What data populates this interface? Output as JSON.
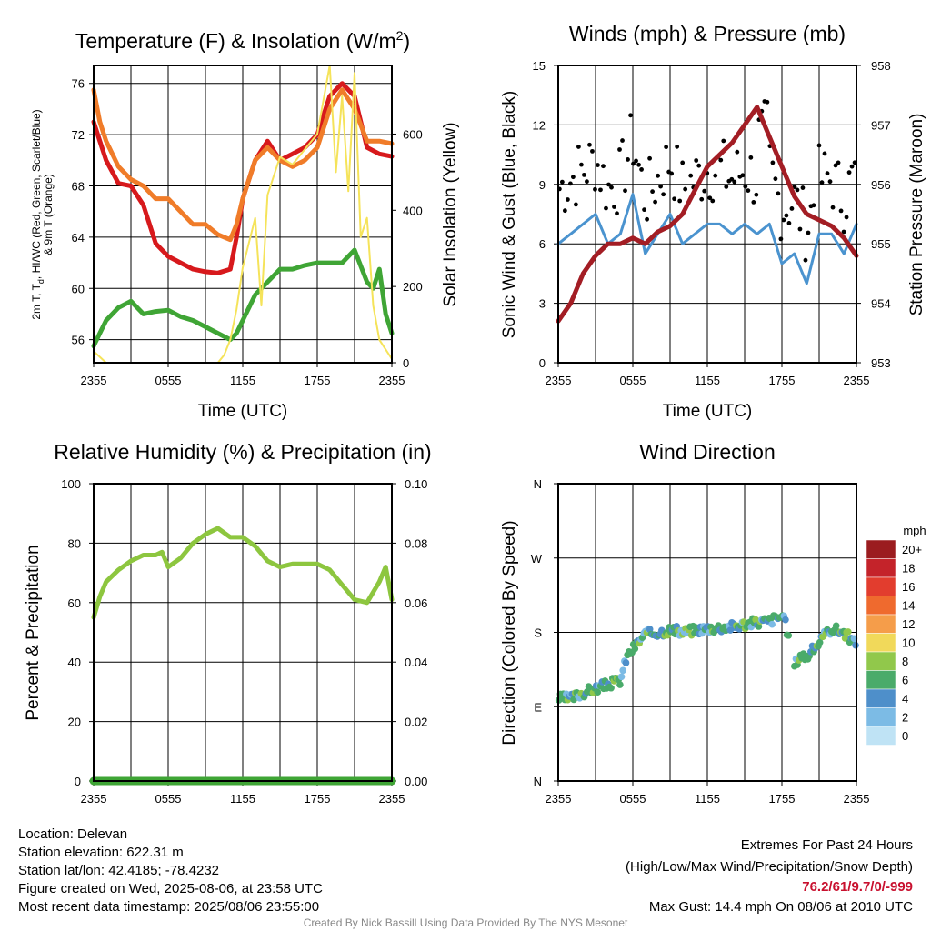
{
  "chart_data": [
    {
      "type": "line",
      "title": "Temperature (F) & Insolation (W/m",
      "title_sup": "2",
      "title_end": ")",
      "xlabel": "Time (UTC)",
      "ylabel_lines": [
        "2m T, T",
        "d",
        ", HI/WC (Red, Green, Scarlet/Blue)",
        "& 9m T (Orange)"
      ],
      "ylabel2": "Solar Insolation (Yellow)",
      "x_ticks": [
        "2355",
        "0555",
        "1155",
        "1755",
        "2355"
      ],
      "y_ticks": [
        56,
        60,
        64,
        68,
        72,
        76
      ],
      "ylim": [
        54.2,
        77.4
      ],
      "y2_ticks": [
        0,
        200,
        400,
        600
      ],
      "y2lim": [
        0,
        780
      ],
      "xlim": [
        0,
        24
      ],
      "series": [
        {
          "role": "temp_2m",
          "color": "#d7191c",
          "values": [
            [
              0,
              73
            ],
            [
              0.5,
              71.5
            ],
            [
              1,
              70
            ],
            [
              2,
              68.2
            ],
            [
              3,
              68
            ],
            [
              4,
              66.5
            ],
            [
              5,
              63.5
            ],
            [
              6,
              62.5
            ],
            [
              7,
              62
            ],
            [
              8,
              61.5
            ],
            [
              9,
              61.3
            ],
            [
              10,
              61.2
            ],
            [
              11,
              61.5
            ],
            [
              11.5,
              64
            ],
            [
              12,
              67
            ],
            [
              13,
              70
            ],
            [
              14,
              71.5
            ],
            [
              15,
              70
            ],
            [
              16,
              70.5
            ],
            [
              17,
              71
            ],
            [
              18,
              72
            ],
            [
              19,
              75
            ],
            [
              20,
              76
            ],
            [
              21,
              75
            ],
            [
              22,
              71
            ],
            [
              23,
              70.5
            ],
            [
              24,
              70.3
            ]
          ]
        },
        {
          "role": "temp_9m",
          "color": "#f07c29",
          "values": [
            [
              0,
              75.5
            ],
            [
              0.5,
              73
            ],
            [
              1,
              71.5
            ],
            [
              2,
              69.5
            ],
            [
              3,
              68.5
            ],
            [
              4,
              68
            ],
            [
              5,
              67
            ],
            [
              6,
              67
            ],
            [
              7,
              66
            ],
            [
              8,
              65
            ],
            [
              9,
              65
            ],
            [
              10,
              64.2
            ],
            [
              11,
              63.8
            ],
            [
              11.5,
              65
            ],
            [
              12,
              67
            ],
            [
              13,
              70
            ],
            [
              14,
              71
            ],
            [
              15,
              70
            ],
            [
              16,
              69.5
            ],
            [
              17,
              70
            ],
            [
              18,
              71
            ],
            [
              19,
              74
            ],
            [
              20,
              75.5
            ],
            [
              21,
              74
            ],
            [
              22,
              71.5
            ],
            [
              23,
              71.5
            ],
            [
              24,
              71.3
            ]
          ]
        },
        {
          "role": "dewpoint",
          "color": "#3fa535",
          "values": [
            [
              0,
              55.5
            ],
            [
              0.5,
              56.5
            ],
            [
              1,
              57.5
            ],
            [
              2,
              58.5
            ],
            [
              3,
              59
            ],
            [
              4,
              58
            ],
            [
              5,
              58.2
            ],
            [
              6,
              58.3
            ],
            [
              7,
              57.8
            ],
            [
              8,
              57.5
            ],
            [
              9,
              57
            ],
            [
              10,
              56.5
            ],
            [
              11,
              56
            ],
            [
              11.5,
              56.5
            ],
            [
              12,
              57.5
            ],
            [
              13,
              59.5
            ],
            [
              14,
              60.5
            ],
            [
              15,
              61.5
            ],
            [
              16,
              61.5
            ],
            [
              17,
              61.8
            ],
            [
              18,
              62
            ],
            [
              19,
              62
            ],
            [
              20,
              62
            ],
            [
              21,
              63
            ],
            [
              22,
              60.5
            ],
            [
              22.5,
              60
            ],
            [
              23,
              61.5
            ],
            [
              23.5,
              58
            ],
            [
              24,
              56.5
            ]
          ]
        },
        {
          "role": "insolation",
          "color": "#f5e35a",
          "axis": "y2",
          "values": [
            [
              0,
              30
            ],
            [
              1,
              0
            ],
            [
              2,
              0
            ],
            [
              3,
              0
            ],
            [
              4,
              0
            ],
            [
              5,
              0
            ],
            [
              6,
              0
            ],
            [
              7,
              0
            ],
            [
              8,
              0
            ],
            [
              9,
              0
            ],
            [
              10,
              0
            ],
            [
              10.5,
              20
            ],
            [
              11,
              60
            ],
            [
              11.5,
              140
            ],
            [
              12,
              250
            ],
            [
              13,
              380
            ],
            [
              13.5,
              150
            ],
            [
              14,
              440
            ],
            [
              15,
              540
            ],
            [
              16,
              520
            ],
            [
              17,
              560
            ],
            [
              18,
              600
            ],
            [
              19,
              780
            ],
            [
              19.5,
              500
            ],
            [
              20,
              700
            ],
            [
              20.5,
              450
            ],
            [
              21,
              760
            ],
            [
              21.5,
              330
            ],
            [
              22,
              380
            ],
            [
              22.5,
              150
            ],
            [
              23,
              60
            ],
            [
              24,
              10
            ]
          ]
        }
      ]
    },
    {
      "type": "line",
      "title": "Winds (mph) & Pressure (mb)",
      "xlabel": "Time (UTC)",
      "ylabel": "Sonic Wind & Gust (Blue, Black)",
      "ylabel2": "Station Pressure (Maroon)",
      "x_ticks": [
        "2355",
        "0555",
        "1155",
        "1755",
        "2355"
      ],
      "y_ticks": [
        0,
        3,
        6,
        9,
        12,
        15
      ],
      "ylim": [
        0,
        15
      ],
      "y2_ticks": [
        953,
        954,
        955,
        956,
        957,
        958
      ],
      "y2lim": [
        953,
        958
      ],
      "xlim": [
        0,
        24
      ],
      "series": [
        {
          "role": "sonic_wind",
          "color": "#4a93cf",
          "values": [
            [
              0,
              6
            ],
            [
              1,
              6.5
            ],
            [
              2,
              7
            ],
            [
              3,
              7.5
            ],
            [
              4,
              6
            ],
            [
              5,
              6.5
            ],
            [
              6,
              8.5
            ],
            [
              7,
              5.5
            ],
            [
              8,
              6.5
            ],
            [
              9,
              7.5
            ],
            [
              10,
              6
            ],
            [
              11,
              6.5
            ],
            [
              12,
              7
            ],
            [
              13,
              7
            ],
            [
              14,
              6.5
            ],
            [
              15,
              7
            ],
            [
              16,
              6.5
            ],
            [
              17,
              7
            ],
            [
              18,
              5
            ],
            [
              19,
              5.5
            ],
            [
              20,
              4
            ],
            [
              21,
              6.5
            ],
            [
              22,
              6.5
            ],
            [
              23,
              5.5
            ],
            [
              24,
              7
            ]
          ]
        },
        {
          "role": "pressure",
          "color": "#a31d24",
          "axis": "y2",
          "values": [
            [
              0,
              953.7
            ],
            [
              1,
              954
            ],
            [
              2,
              954.5
            ],
            [
              3,
              954.8
            ],
            [
              4,
              955
            ],
            [
              5,
              955
            ],
            [
              6,
              955.1
            ],
            [
              7,
              955
            ],
            [
              8,
              955.2
            ],
            [
              9,
              955.3
            ],
            [
              10,
              955.5
            ],
            [
              11,
              955.9
            ],
            [
              12,
              956.3
            ],
            [
              13,
              956.5
            ],
            [
              14,
              956.7
            ],
            [
              15,
              957
            ],
            [
              16,
              957.3
            ],
            [
              17,
              956.8
            ],
            [
              18,
              956.3
            ],
            [
              19,
              955.8
            ],
            [
              20,
              955.5
            ],
            [
              21,
              955.4
            ],
            [
              22,
              955.3
            ],
            [
              23,
              955.1
            ],
            [
              24,
              954.8
            ]
          ]
        }
      ]
    },
    {
      "type": "line",
      "title": "Relative Humidity (%) & Precipitation (in)",
      "ylabel": "Percent & Precipitation",
      "x_ticks": [
        "2355",
        "0555",
        "1155",
        "1755",
        "2355"
      ],
      "y_ticks": [
        0,
        20,
        40,
        60,
        80,
        100
      ],
      "ylim": [
        0,
        100
      ],
      "y2_ticks": [
        "0.00",
        "0.02",
        "0.04",
        "0.06",
        "0.08",
        "0.10"
      ],
      "xlim": [
        0,
        24
      ],
      "series": [
        {
          "role": "rh",
          "color": "#8dc63f",
          "values": [
            [
              0,
              55
            ],
            [
              0.5,
              62
            ],
            [
              1,
              67
            ],
            [
              2,
              71
            ],
            [
              3,
              74
            ],
            [
              4,
              76
            ],
            [
              5,
              76
            ],
            [
              5.5,
              77
            ],
            [
              6,
              72
            ],
            [
              7,
              75
            ],
            [
              8,
              80
            ],
            [
              9,
              83
            ],
            [
              10,
              85
            ],
            [
              11,
              82
            ],
            [
              12,
              82
            ],
            [
              13,
              79
            ],
            [
              14,
              74
            ],
            [
              15,
              72
            ],
            [
              16,
              73
            ],
            [
              17,
              73
            ],
            [
              18,
              73
            ],
            [
              19,
              71
            ],
            [
              20,
              66
            ],
            [
              21,
              61
            ],
            [
              22,
              60
            ],
            [
              23,
              67
            ],
            [
              23.5,
              72
            ],
            [
              24,
              61
            ]
          ]
        },
        {
          "role": "precip",
          "color": "#3fa535",
          "values": [
            [
              0,
              0
            ],
            [
              24,
              0
            ]
          ]
        }
      ]
    },
    {
      "type": "scatter",
      "title": "Wind Direction",
      "ylabel": "Direction (Colored By Speed)",
      "x_ticks": [
        "2355",
        "0555",
        "1155",
        "1755",
        "2355"
      ],
      "y_ticks": [
        "N",
        "E",
        "S",
        "W",
        "N"
      ],
      "ylim": [
        0,
        360
      ],
      "xlim": [
        0,
        24
      ],
      "legend_title": "mph",
      "legend": [
        {
          "label": "20+",
          "color": "#9b1c1f"
        },
        {
          "label": "18",
          "color": "#c4232a"
        },
        {
          "label": "16",
          "color": "#e23d2e"
        },
        {
          "label": "14",
          "color": "#ef6a2e"
        },
        {
          "label": "12",
          "color": "#f59d4a"
        },
        {
          "label": "10",
          "color": "#f1d95a"
        },
        {
          "label": "8",
          "color": "#91c84b"
        },
        {
          "label": "6",
          "color": "#4aab6a"
        },
        {
          "label": "4",
          "color": "#4e8fca"
        },
        {
          "label": "2",
          "color": "#7cbbe5"
        },
        {
          "label": "0",
          "color": "#bfe3f5"
        }
      ],
      "points_path": [
        [
          0,
          100
        ],
        [
          1,
          100
        ],
        [
          2,
          107
        ],
        [
          3,
          112
        ],
        [
          4,
          117
        ],
        [
          5,
          122
        ],
        [
          5.5,
          150
        ],
        [
          6,
          160
        ],
        [
          7,
          178
        ],
        [
          8,
          180
        ],
        [
          9,
          183
        ],
        [
          10,
          180
        ],
        [
          11,
          183
        ],
        [
          12,
          185
        ],
        [
          13,
          186
        ],
        [
          14,
          187
        ],
        [
          15,
          190
        ],
        [
          16,
          192
        ],
        [
          17,
          194
        ],
        [
          18,
          200
        ],
        [
          18.3,
          190
        ],
        [
          19,
          140
        ],
        [
          19.5,
          153
        ],
        [
          20,
          150
        ],
        [
          21,
          168
        ],
        [
          22,
          185
        ],
        [
          23,
          180
        ],
        [
          24,
          165
        ]
      ]
    }
  ],
  "footer": {
    "location": "Location: Delevan",
    "elevation": "Station elevation: 622.31 m",
    "latlon": "Station lat/lon: 42.4185; -78.4232",
    "created": "Figure created on Wed, 2025-08-06, at 23:58 UTC",
    "recent": "Most recent data timestamp: 2025/08/06 23:55:00",
    "extremes_title": "Extremes For Past 24 Hours",
    "extremes_sub": "(High/Low/Max Wind/Precipitation/Snow Depth)",
    "extremes_values": "76.2/61/9.7/0/-999",
    "max_gust": "Max Gust: 14.4 mph On 08/06 at 2010 UTC",
    "credit": "Created By Nick Bassill Using Data Provided By The NYS Mesonet"
  }
}
